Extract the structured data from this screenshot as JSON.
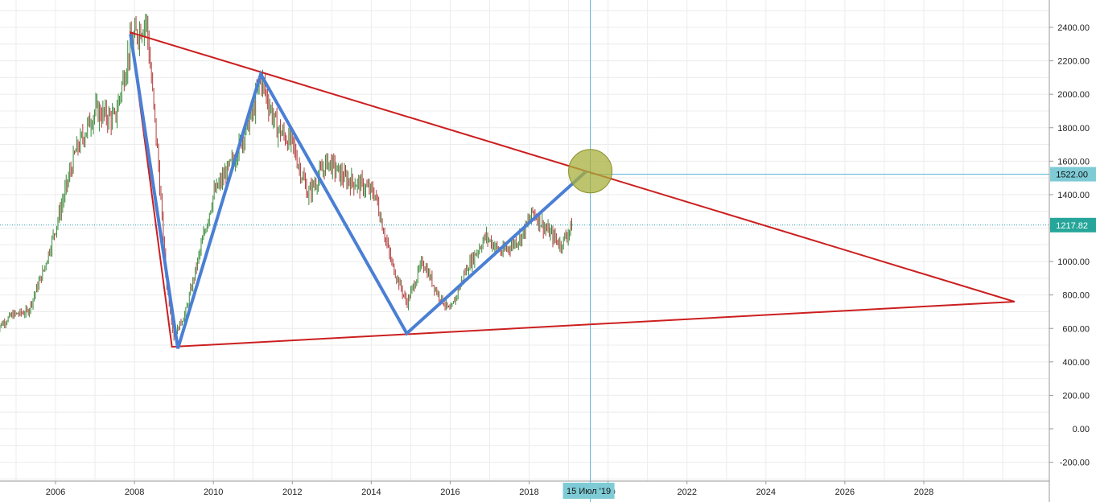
{
  "chart_data": {
    "type": "line",
    "title": "",
    "xlabel": "",
    "ylabel": "",
    "xlim": [
      2004.5,
      2031.0
    ],
    "ylim": [
      -300,
      2600
    ],
    "grid": true,
    "y_ticks": [
      2400,
      2200,
      2000,
      1800,
      1600,
      1400,
      1200,
      1000,
      800,
      600,
      400,
      200,
      0,
      -200
    ],
    "y_tick_labels": [
      "2400.00",
      "2200.00",
      "2000.00",
      "1800.00",
      "1600.00",
      "1400.00",
      "1200.00",
      "1000.00",
      "800.00",
      "600.00",
      "400.00",
      "200.00",
      "0.00",
      "-200.00"
    ],
    "x_ticks": [
      2006,
      2008,
      2010,
      2012,
      2014,
      2016,
      2018,
      2020,
      2022,
      2024,
      2026,
      2028
    ],
    "x_tick_labels": [
      "2006",
      "2008",
      "2010",
      "2012",
      "2014",
      "2016",
      "2018",
      "",
      "2022",
      "2024",
      "2026",
      "2028"
    ],
    "price_path": {
      "x": [
        2004.5,
        2004.9,
        2005.3,
        2005.7,
        2006.0,
        2006.5,
        2007.0,
        2007.5,
        2007.9,
        2008.3,
        2008.6,
        2008.8,
        2009.0,
        2009.3,
        2009.6,
        2010.0,
        2010.5,
        2011.0,
        2011.2,
        2011.6,
        2012.0,
        2012.4,
        2012.9,
        2013.3,
        2013.8,
        2014.1,
        2014.5,
        2014.9,
        2015.3,
        2015.7,
        2016.0,
        2016.4,
        2016.9,
        2017.3,
        2017.8,
        2018.1,
        2018.4,
        2018.8,
        2019.1
      ],
      "y": [
        600,
        680,
        700,
        950,
        1200,
        1650,
        1900,
        1850,
        2300,
        2450,
        1600,
        900,
        550,
        700,
        1000,
        1400,
        1600,
        1900,
        2100,
        1800,
        1700,
        1400,
        1600,
        1500,
        1450,
        1400,
        1000,
        750,
        1000,
        800,
        700,
        950,
        1150,
        1050,
        1150,
        1300,
        1200,
        1100,
        1220
      ]
    },
    "current_price": 1217.82,
    "current_price_label": "1217.82",
    "crosshair": {
      "date_label": "15 Июл '19",
      "x": 2019.55,
      "price": 1522.0,
      "price_label": "1522.00"
    },
    "triangle": {
      "points": [
        [
          2007.9,
          2370
        ],
        [
          2008.95,
          490
        ],
        [
          2030.3,
          760
        ]
      ],
      "color": "#cc1f1f"
    },
    "wave": {
      "points": [
        [
          2007.9,
          2360
        ],
        [
          2009.1,
          480
        ],
        [
          2011.2,
          2120
        ],
        [
          2014.9,
          570
        ],
        [
          2019.45,
          1540
        ]
      ],
      "color": "#4a7fd4"
    },
    "target_circle": {
      "x": 2019.55,
      "y": 1540,
      "color": "#a8b03c"
    },
    "colors": {
      "grid": "#ececec",
      "axis": "#999999",
      "crosshair": "#5ab4d6",
      "price_line": "#2a9aa8",
      "badge_current": "#26a69a",
      "badge_cross": "#7ecbd6"
    }
  }
}
